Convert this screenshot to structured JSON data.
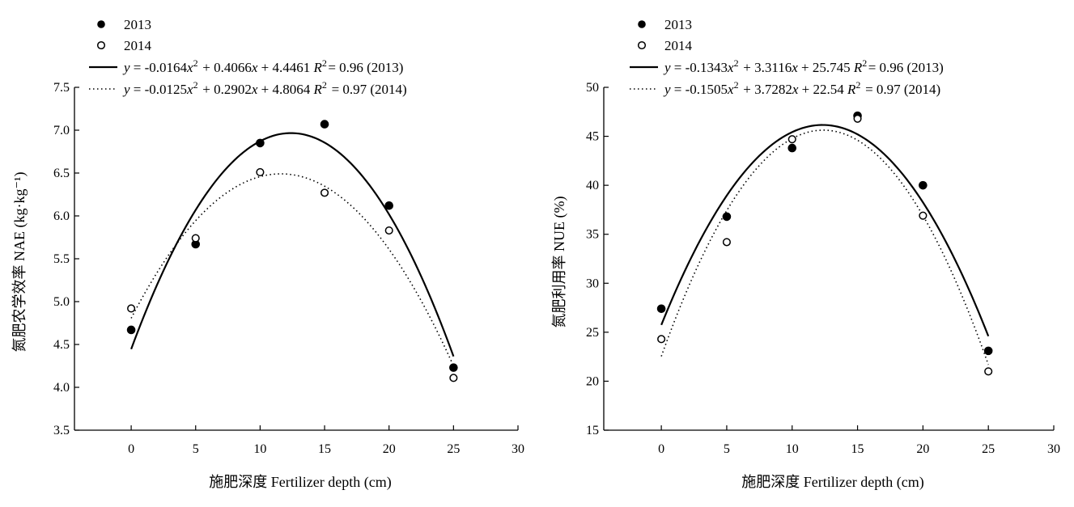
{
  "chart_data": [
    {
      "type": "scatter",
      "xlabel": "施肥深度 Fertilizer depth (cm)",
      "ylabel": "氮肥农学效率 NAE (kg·kg⁻¹)",
      "xlim": [
        -4.4,
        30
      ],
      "ylim": [
        3.5,
        7.5
      ],
      "xticks": [
        0,
        5,
        10,
        15,
        20,
        25,
        30
      ],
      "yticks": [
        "3.5",
        "4.0",
        "4.5",
        "5.0",
        "5.5",
        "6.0",
        "6.5",
        "7.0",
        "7.5"
      ],
      "x": [
        0,
        5,
        10,
        15,
        20,
        25
      ],
      "series": [
        {
          "name": "2013",
          "marker": "filled",
          "values": [
            4.67,
            5.67,
            6.85,
            7.07,
            6.12,
            4.23
          ]
        },
        {
          "name": "2014",
          "marker": "open",
          "values": [
            4.92,
            5.74,
            6.51,
            6.27,
            5.83,
            4.11
          ]
        }
      ],
      "fits": [
        {
          "eq": "y = -0.0164x² + 0.4066x + 4.4461  R²= 0.96 (2013)",
          "a": -0.0164,
          "b": 0.4066,
          "c": 4.4461,
          "line": "solid"
        },
        {
          "eq": "y = -0.0125x² + 0.2902x + 4.8064  R² = 0.97 (2014)",
          "a": -0.0125,
          "b": 0.2902,
          "c": 4.8064,
          "line": "dotted"
        }
      ],
      "legend_position": "top-left",
      "grid": false
    },
    {
      "type": "scatter",
      "xlabel": "施肥深度 Fertilizer depth (cm)",
      "ylabel": "氮肥利用率 NUE (%)",
      "xlim": [
        -4.4,
        30
      ],
      "ylim": [
        15,
        50
      ],
      "xticks": [
        0,
        5,
        10,
        15,
        20,
        25,
        30
      ],
      "yticks": [
        "15",
        "20",
        "25",
        "30",
        "35",
        "40",
        "45",
        "50"
      ],
      "x": [
        0,
        5,
        10,
        15,
        20,
        25
      ],
      "series": [
        {
          "name": "2013",
          "marker": "filled",
          "values": [
            27.4,
            36.8,
            43.8,
            47.1,
            40.0,
            23.1
          ]
        },
        {
          "name": "2014",
          "marker": "open",
          "values": [
            24.3,
            34.2,
            44.7,
            46.8,
            36.9,
            21.0
          ]
        }
      ],
      "fits": [
        {
          "eq": "y = -0.1343x² + 3.3116x + 25.745  R²= 0.96 (2013)",
          "a": -0.1343,
          "b": 3.3116,
          "c": 25.745,
          "line": "solid"
        },
        {
          "eq": "y = -0.1505x² + 3.7282x + 22.54  R² = 0.97 (2014)",
          "a": -0.1505,
          "b": 3.7282,
          "c": 22.54,
          "line": "dotted"
        }
      ],
      "legend_position": "top-left",
      "grid": false
    }
  ]
}
